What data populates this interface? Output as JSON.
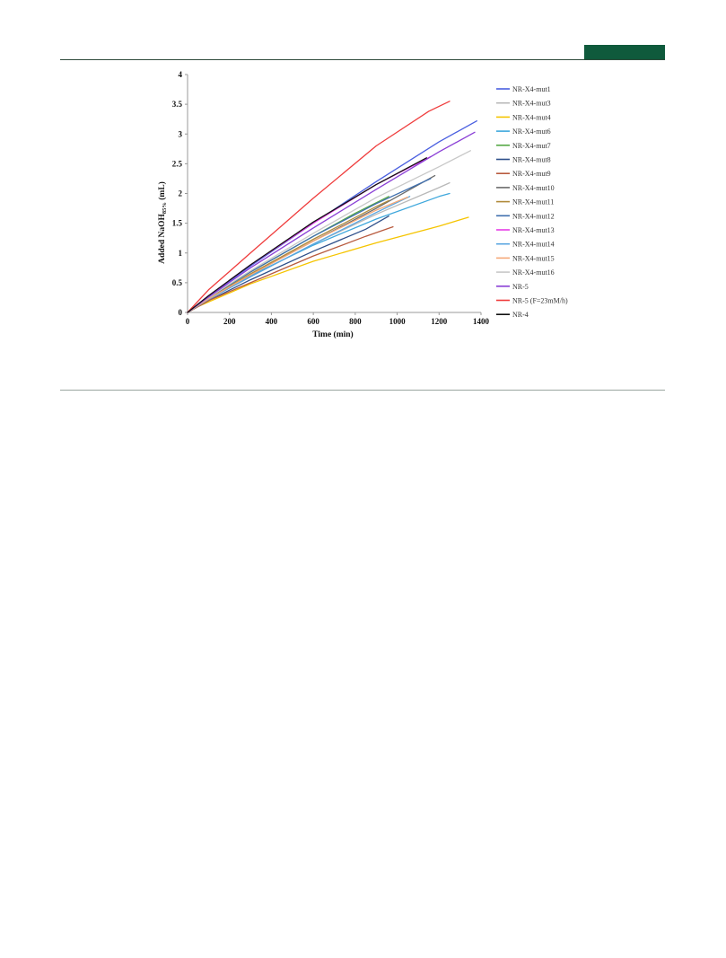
{
  "page": {
    "header_band_color": "#0f5a3c"
  },
  "chart_data": {
    "type": "line",
    "title": "",
    "xlabel": "Time (min)",
    "ylabel_main": "Added NaOH",
    "ylabel_sub": "85%",
    "ylabel_unit": " (mL)",
    "xlim": [
      0,
      1400
    ],
    "ylim": [
      0,
      4
    ],
    "x_ticks": [
      "0",
      "200",
      "400",
      "600",
      "800",
      "1000",
      "1200",
      "1400"
    ],
    "y_ticks": [
      "0",
      "0.5",
      "1",
      "1.5",
      "2",
      "2.5",
      "3",
      "3.5",
      "4"
    ],
    "grid": false,
    "legend_position": "right",
    "series": [
      {
        "name": "NR-X4-mut1",
        "color": "#4a5fe0",
        "x": [
          0,
          100,
          300,
          600,
          900,
          1200,
          1380
        ],
        "y": [
          0,
          0.27,
          0.78,
          1.5,
          2.2,
          2.87,
          3.22
        ]
      },
      {
        "name": "NR-X4-mut3",
        "color": "#b8b8b8",
        "x": [
          0,
          100,
          300,
          600,
          900,
          1200,
          1250
        ],
        "y": [
          0,
          0.22,
          0.6,
          1.15,
          1.65,
          2.1,
          2.18
        ]
      },
      {
        "name": "NR-X4-mut4",
        "color": "#f5c400",
        "x": [
          0,
          50,
          300,
          600,
          900,
          1200,
          1340
        ],
        "y": [
          0,
          0.1,
          0.48,
          0.86,
          1.17,
          1.45,
          1.6
        ]
      },
      {
        "name": "NR-X4-mut6",
        "color": "#3ea7dc",
        "x": [
          0,
          100,
          300,
          600,
          900,
          1200,
          1250
        ],
        "y": [
          0,
          0.24,
          0.62,
          1.13,
          1.57,
          1.95,
          2.0
        ]
      },
      {
        "name": "NR-X4-mut7",
        "color": "#56a845",
        "x": [
          0,
          100,
          300,
          600,
          800,
          960
        ],
        "y": [
          0,
          0.24,
          0.68,
          1.28,
          1.67,
          1.95
        ]
      },
      {
        "name": "NR-X4-mut8",
        "color": "#2e4f8a",
        "x": [
          0,
          100,
          300,
          600,
          850,
          960
        ],
        "y": [
          0,
          0.2,
          0.55,
          1.03,
          1.4,
          1.62
        ]
      },
      {
        "name": "NR-X4-mut9",
        "color": "#b85a3e",
        "x": [
          0,
          100,
          300,
          600,
          850,
          980
        ],
        "y": [
          0,
          0.2,
          0.5,
          0.95,
          1.28,
          1.44
        ]
      },
      {
        "name": "NR-X4-mut10",
        "color": "#6b6b6b",
        "x": [
          0,
          100,
          300,
          600,
          900,
          1180
        ],
        "y": [
          0,
          0.24,
          0.64,
          1.2,
          1.75,
          2.3
        ]
      },
      {
        "name": "NR-X4-mut11",
        "color": "#b08a3a",
        "x": [
          0,
          100,
          300,
          600,
          900,
          960
        ],
        "y": [
          0,
          0.23,
          0.65,
          1.23,
          1.78,
          1.88
        ]
      },
      {
        "name": "NR-X4-mut12",
        "color": "#3f6fae",
        "x": [
          0,
          100,
          300,
          600,
          900,
          1160
        ],
        "y": [
          0,
          0.25,
          0.68,
          1.28,
          1.83,
          2.25
        ]
      },
      {
        "name": "NR-X4-mut13",
        "color": "#e63de6",
        "x": [
          0,
          100,
          300,
          600,
          900,
          1160
        ],
        "y": [
          0,
          0.28,
          0.8,
          1.5,
          2.15,
          2.62
        ]
      },
      {
        "name": "NR-X4-mut14",
        "color": "#5aa6e0",
        "x": [
          0,
          100,
          300,
          600,
          900,
          1060
        ],
        "y": [
          0,
          0.22,
          0.6,
          1.15,
          1.68,
          1.95
        ]
      },
      {
        "name": "NR-X4-mut15",
        "color": "#f5a878",
        "x": [
          0,
          100,
          300,
          600,
          900,
          1050
        ],
        "y": [
          0,
          0.23,
          0.63,
          1.2,
          1.72,
          1.94
        ]
      },
      {
        "name": "NR-X4-mut16",
        "color": "#c8c8c8",
        "x": [
          0,
          100,
          300,
          600,
          900,
          1200,
          1350
        ],
        "y": [
          0,
          0.25,
          0.7,
          1.33,
          1.93,
          2.45,
          2.72
        ]
      },
      {
        "name": "NR-5",
        "color": "#8a3fd6",
        "x": [
          0,
          100,
          300,
          600,
          900,
          1200,
          1370
        ],
        "y": [
          0,
          0.26,
          0.75,
          1.42,
          2.07,
          2.7,
          3.03
        ]
      },
      {
        "name": "NR-5 (F=23mM/h)",
        "color": "#ef3c3c",
        "x": [
          0,
          100,
          300,
          600,
          900,
          1150,
          1250
        ],
        "y": [
          0,
          0.38,
          1.0,
          1.92,
          2.8,
          3.38,
          3.55
        ]
      },
      {
        "name": "NR-4",
        "color": "#111111",
        "x": [
          0,
          100,
          300,
          600,
          900,
          1140
        ],
        "y": [
          0,
          0.28,
          0.8,
          1.52,
          2.15,
          2.6
        ]
      }
    ]
  }
}
